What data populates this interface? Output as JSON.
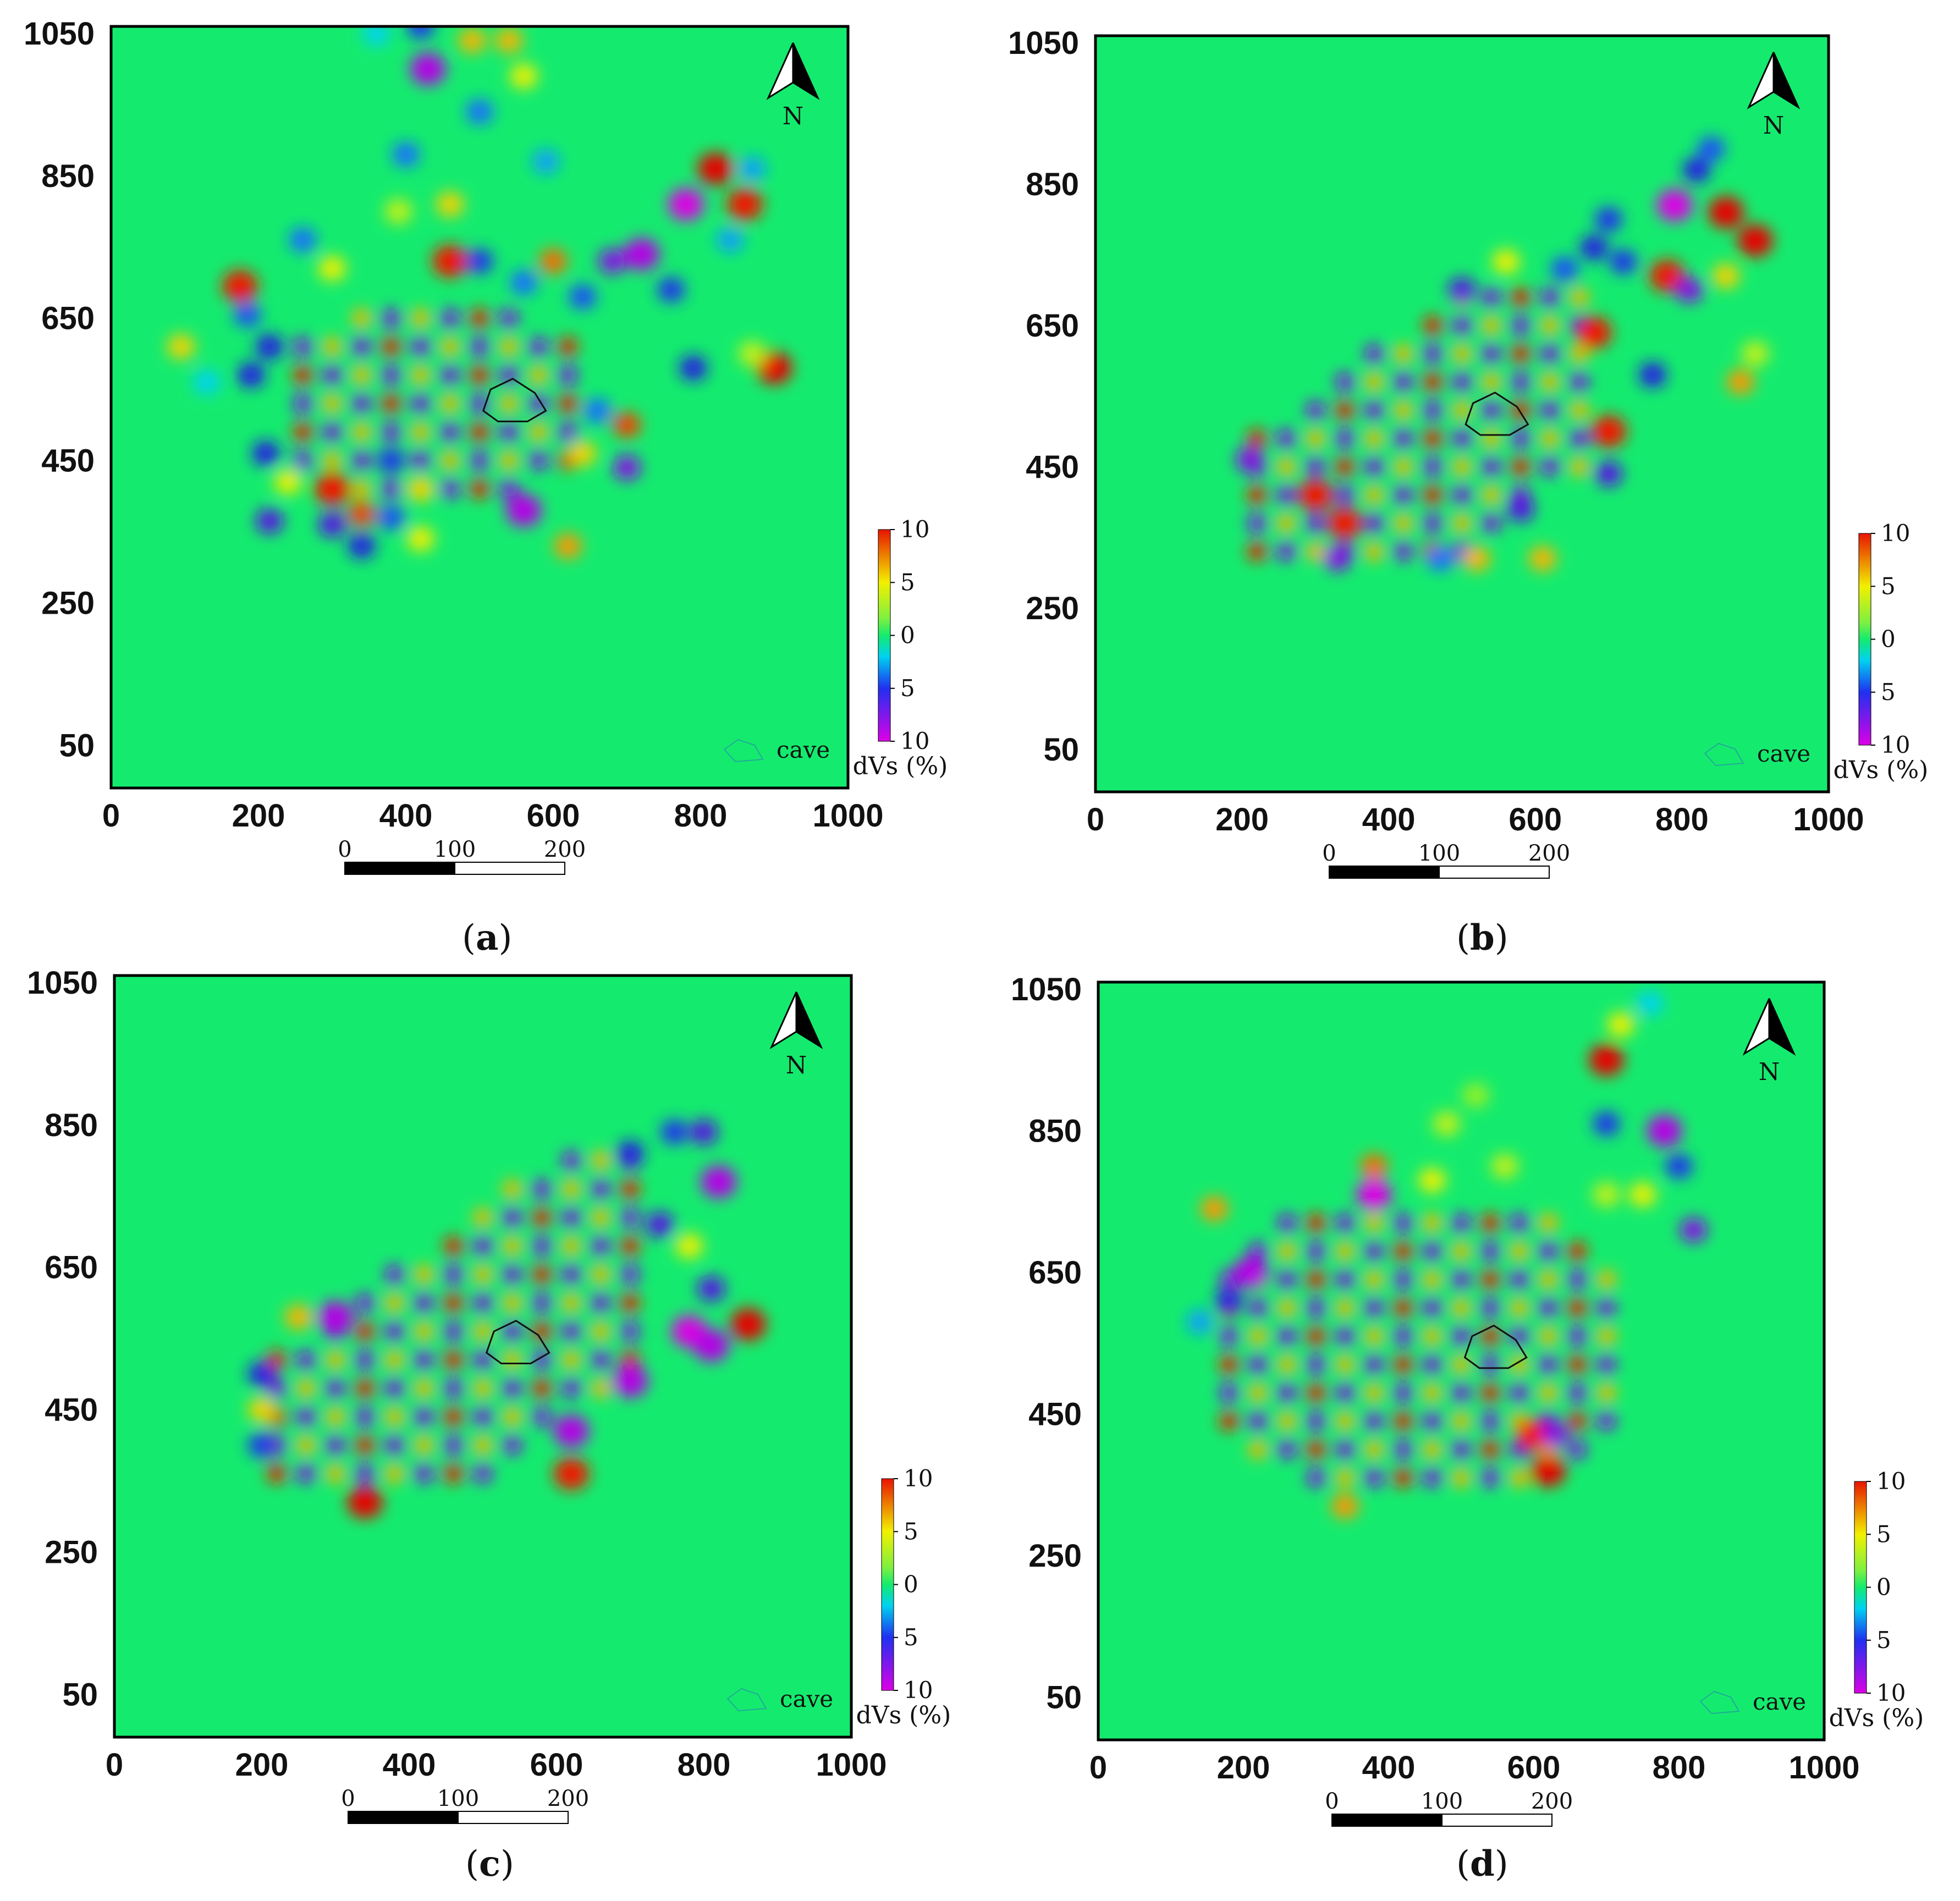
{
  "figure": {
    "panels": [
      {
        "id": "a",
        "caption_letter": "a"
      },
      {
        "id": "b",
        "caption_letter": "b"
      },
      {
        "id": "c",
        "caption_letter": "c"
      },
      {
        "id": "d",
        "caption_letter": "d"
      }
    ]
  },
  "chart_data": [
    {
      "type": "heatmap",
      "panel": "a",
      "title": "",
      "xlabel": "",
      "ylabel": "",
      "xlim": [
        0,
        1000
      ],
      "ylim": [
        0,
        1050
      ],
      "xticks": [
        "0",
        "200",
        "400",
        "600",
        "800",
        "1000"
      ],
      "yticks": [
        "50",
        "250",
        "450",
        "650",
        "850",
        "1050"
      ],
      "colorbar": {
        "label": "dVs (%)",
        "ticks": [
          "10",
          "5",
          "0",
          "5",
          "10"
        ],
        "range": [
          -10,
          10
        ]
      },
      "north_arrow": "N",
      "legend": {
        "symbol": "cave-outline",
        "label": "cave",
        "position": "bottom-right"
      },
      "scale_bar": {
        "ticks": [
          "0",
          "100",
          "200"
        ]
      },
      "cave_center": [
        545,
        530
      ],
      "anomalies": [
        {
          "x": 175,
          "y": 695,
          "v": 10
        },
        {
          "x": 95,
          "y": 610,
          "v": 5
        },
        {
          "x": 130,
          "y": 560,
          "v": -2
        },
        {
          "x": 215,
          "y": 610,
          "v": -7
        },
        {
          "x": 185,
          "y": 655,
          "v": -5
        },
        {
          "x": 190,
          "y": 570,
          "v": -7
        },
        {
          "x": 210,
          "y": 460,
          "v": -7
        },
        {
          "x": 215,
          "y": 365,
          "v": -8
        },
        {
          "x": 240,
          "y": 420,
          "v": 4
        },
        {
          "x": 300,
          "y": 410,
          "v": 10
        },
        {
          "x": 340,
          "y": 375,
          "v": 9
        },
        {
          "x": 300,
          "y": 360,
          "v": -8
        },
        {
          "x": 340,
          "y": 330,
          "v": -7
        },
        {
          "x": 380,
          "y": 450,
          "v": -6
        },
        {
          "x": 420,
          "y": 410,
          "v": 5
        },
        {
          "x": 380,
          "y": 370,
          "v": -5
        },
        {
          "x": 420,
          "y": 340,
          "v": 4
        },
        {
          "x": 560,
          "y": 380,
          "v": -10
        },
        {
          "x": 620,
          "y": 330,
          "v": 7
        },
        {
          "x": 640,
          "y": 460,
          "v": 5
        },
        {
          "x": 700,
          "y": 500,
          "v": 9
        },
        {
          "x": 700,
          "y": 440,
          "v": -9
        },
        {
          "x": 660,
          "y": 520,
          "v": -4
        },
        {
          "x": 460,
          "y": 730,
          "v": 10
        },
        {
          "x": 460,
          "y": 810,
          "v": 5
        },
        {
          "x": 390,
          "y": 800,
          "v": 3
        },
        {
          "x": 500,
          "y": 730,
          "v": -6
        },
        {
          "x": 600,
          "y": 730,
          "v": 8
        },
        {
          "x": 680,
          "y": 730,
          "v": -9
        },
        {
          "x": 720,
          "y": 740,
          "v": -10
        },
        {
          "x": 760,
          "y": 690,
          "v": -6
        },
        {
          "x": 640,
          "y": 680,
          "v": -5
        },
        {
          "x": 560,
          "y": 700,
          "v": -4
        },
        {
          "x": 300,
          "y": 720,
          "v": 4
        },
        {
          "x": 260,
          "y": 760,
          "v": -4
        },
        {
          "x": 780,
          "y": 810,
          "v": -11
        },
        {
          "x": 820,
          "y": 860,
          "v": 11
        },
        {
          "x": 860,
          "y": 810,
          "v": 10
        },
        {
          "x": 870,
          "y": 860,
          "v": -3
        },
        {
          "x": 840,
          "y": 760,
          "v": -3
        },
        {
          "x": 790,
          "y": 580,
          "v": -7
        },
        {
          "x": 900,
          "y": 580,
          "v": 11
        },
        {
          "x": 870,
          "y": 600,
          "v": 3
        },
        {
          "x": 430,
          "y": 1000,
          "v": -10
        },
        {
          "x": 420,
          "y": 1060,
          "v": -6
        },
        {
          "x": 360,
          "y": 1050,
          "v": -2
        },
        {
          "x": 490,
          "y": 1040,
          "v": 6
        },
        {
          "x": 540,
          "y": 1040,
          "v": 6
        },
        {
          "x": 500,
          "y": 940,
          "v": -4
        },
        {
          "x": 560,
          "y": 990,
          "v": 4
        },
        {
          "x": 400,
          "y": 880,
          "v": -4
        },
        {
          "x": 590,
          "y": 870,
          "v": -3
        }
      ],
      "grid_pattern": {
        "x_start": 260,
        "x_end": 620,
        "y_start": 410,
        "y_end": 650,
        "spacing": 40
      }
    },
    {
      "type": "heatmap",
      "panel": "b",
      "title": "",
      "xlabel": "",
      "ylabel": "",
      "xlim": [
        0,
        1000
      ],
      "ylim": [
        0,
        1050
      ],
      "xticks": [
        "0",
        "200",
        "400",
        "600",
        "800",
        "1000"
      ],
      "yticks": [
        "50",
        "250",
        "450",
        "650",
        "850",
        "1050"
      ],
      "colorbar": {
        "label": "dVs (%)",
        "ticks": [
          "10",
          "5",
          "0",
          "5",
          "10"
        ],
        "range": [
          -10,
          10
        ]
      },
      "north_arrow": "N",
      "legend": {
        "symbol": "cave-outline",
        "label": "cave",
        "position": "bottom-right"
      },
      "scale_bar": {
        "ticks": [
          "0",
          "100",
          "200"
        ]
      },
      "cave_center": [
        545,
        520
      ],
      "anomalies": [
        {
          "x": 210,
          "y": 460,
          "v": -9
        },
        {
          "x": 330,
          "y": 320,
          "v": -9
        },
        {
          "x": 340,
          "y": 370,
          "v": 10
        },
        {
          "x": 300,
          "y": 410,
          "v": 10
        },
        {
          "x": 470,
          "y": 320,
          "v": -4
        },
        {
          "x": 520,
          "y": 320,
          "v": 6
        },
        {
          "x": 610,
          "y": 320,
          "v": 6
        },
        {
          "x": 580,
          "y": 390,
          "v": -8
        },
        {
          "x": 680,
          "y": 640,
          "v": 10
        },
        {
          "x": 700,
          "y": 500,
          "v": 10
        },
        {
          "x": 700,
          "y": 440,
          "v": -8
        },
        {
          "x": 760,
          "y": 580,
          "v": -7
        },
        {
          "x": 880,
          "y": 570,
          "v": 7
        },
        {
          "x": 780,
          "y": 720,
          "v": 10
        },
        {
          "x": 810,
          "y": 700,
          "v": -9
        },
        {
          "x": 790,
          "y": 820,
          "v": -11
        },
        {
          "x": 860,
          "y": 810,
          "v": 11
        },
        {
          "x": 900,
          "y": 770,
          "v": 11
        },
        {
          "x": 820,
          "y": 870,
          "v": -7
        },
        {
          "x": 860,
          "y": 720,
          "v": 5
        },
        {
          "x": 700,
          "y": 800,
          "v": -6
        },
        {
          "x": 680,
          "y": 760,
          "v": -7
        },
        {
          "x": 720,
          "y": 740,
          "v": -6
        },
        {
          "x": 500,
          "y": 700,
          "v": -8
        },
        {
          "x": 560,
          "y": 740,
          "v": 4
        },
        {
          "x": 640,
          "y": 730,
          "v": -5
        },
        {
          "x": 840,
          "y": 900,
          "v": -5
        },
        {
          "x": 900,
          "y": 610,
          "v": 3
        }
      ],
      "grid_pattern": {
        "x_start": 220,
        "x_end": 660,
        "y_start": 330,
        "y_end": 690,
        "spacing": 40,
        "diagonal": true
      }
    },
    {
      "type": "heatmap",
      "panel": "c",
      "title": "",
      "xlabel": "",
      "ylabel": "",
      "xlim": [
        0,
        1000
      ],
      "ylim": [
        0,
        1050
      ],
      "xticks": [
        "0",
        "200",
        "400",
        "600",
        "800",
        "1000"
      ],
      "yticks": [
        "50",
        "250",
        "450",
        "650",
        "850",
        "1050"
      ],
      "colorbar": {
        "label": "dVs (%)",
        "ticks": [
          "10",
          "5",
          "0",
          "5",
          "10"
        ],
        "range": [
          -10,
          10
        ]
      },
      "north_arrow": "N",
      "legend": {
        "symbol": "cave-outline",
        "label": "cave",
        "position": "bottom-right"
      },
      "scale_bar": {
        "ticks": [
          "0",
          "100",
          "200"
        ]
      },
      "cave_center": [
        545,
        540
      ],
      "anomalies": [
        {
          "x": 340,
          "y": 320,
          "v": 11
        },
        {
          "x": 620,
          "y": 360,
          "v": 10
        },
        {
          "x": 620,
          "y": 420,
          "v": -10
        },
        {
          "x": 700,
          "y": 490,
          "v": -10
        },
        {
          "x": 780,
          "y": 560,
          "v": -11
        },
        {
          "x": 810,
          "y": 540,
          "v": -10
        },
        {
          "x": 860,
          "y": 570,
          "v": 11
        },
        {
          "x": 810,
          "y": 620,
          "v": -8
        },
        {
          "x": 820,
          "y": 770,
          "v": -10
        },
        {
          "x": 800,
          "y": 840,
          "v": -8
        },
        {
          "x": 760,
          "y": 840,
          "v": -6
        },
        {
          "x": 740,
          "y": 710,
          "v": -8
        },
        {
          "x": 780,
          "y": 680,
          "v": 4
        },
        {
          "x": 700,
          "y": 810,
          "v": -7
        },
        {
          "x": 300,
          "y": 580,
          "v": -10
        },
        {
          "x": 250,
          "y": 580,
          "v": 6
        },
        {
          "x": 200,
          "y": 500,
          "v": -7
        },
        {
          "x": 200,
          "y": 450,
          "v": 5
        },
        {
          "x": 200,
          "y": 400,
          "v": -6
        }
      ],
      "grid_pattern": {
        "x_start": 220,
        "x_end": 700,
        "y_start": 360,
        "y_end": 820,
        "spacing": 40,
        "diagonal": true
      }
    },
    {
      "type": "heatmap",
      "panel": "d",
      "title": "",
      "xlabel": "",
      "ylabel": "",
      "xlim": [
        0,
        1000
      ],
      "ylim": [
        0,
        1050
      ],
      "xticks": [
        "0",
        "200",
        "400",
        "600",
        "800",
        "1000"
      ],
      "yticks": [
        "50",
        "250",
        "450",
        "650",
        "850",
        "1050"
      ],
      "colorbar": {
        "label": "dVs (%)",
        "ticks": [
          "10",
          "5",
          "0",
          "5",
          "10"
        ],
        "range": [
          -10,
          10
        ]
      },
      "north_arrow": "N",
      "legend": {
        "symbol": "cave-outline",
        "label": "cave",
        "position": "bottom-right"
      },
      "scale_bar": {
        "ticks": [
          "0",
          "100",
          "200"
        ]
      },
      "cave_center": [
        545,
        540
      ],
      "anomalies": [
        {
          "x": 700,
          "y": 950,
          "v": 11
        },
        {
          "x": 720,
          "y": 1000,
          "v": 4
        },
        {
          "x": 760,
          "y": 1030,
          "v": -2
        },
        {
          "x": 780,
          "y": 850,
          "v": -10
        },
        {
          "x": 800,
          "y": 800,
          "v": -6
        },
        {
          "x": 820,
          "y": 710,
          "v": -9
        },
        {
          "x": 700,
          "y": 860,
          "v": -6
        },
        {
          "x": 750,
          "y": 760,
          "v": 4
        },
        {
          "x": 700,
          "y": 760,
          "v": 3
        },
        {
          "x": 380,
          "y": 760,
          "v": -11
        },
        {
          "x": 380,
          "y": 800,
          "v": 8
        },
        {
          "x": 160,
          "y": 740,
          "v": 7
        },
        {
          "x": 210,
          "y": 650,
          "v": -10
        },
        {
          "x": 180,
          "y": 610,
          "v": -7
        },
        {
          "x": 140,
          "y": 580,
          "v": -3
        },
        {
          "x": 620,
          "y": 370,
          "v": 11
        },
        {
          "x": 600,
          "y": 420,
          "v": 10
        },
        {
          "x": 630,
          "y": 420,
          "v": -9
        },
        {
          "x": 340,
          "y": 320,
          "v": 7
        },
        {
          "x": 460,
          "y": 780,
          "v": 4
        },
        {
          "x": 560,
          "y": 800,
          "v": 3
        },
        {
          "x": 480,
          "y": 860,
          "v": 3
        },
        {
          "x": 520,
          "y": 900,
          "v": 2
        }
      ],
      "grid_pattern": {
        "x_start": 180,
        "x_end": 700,
        "y_start": 360,
        "y_end": 740,
        "spacing": 40
      }
    }
  ]
}
